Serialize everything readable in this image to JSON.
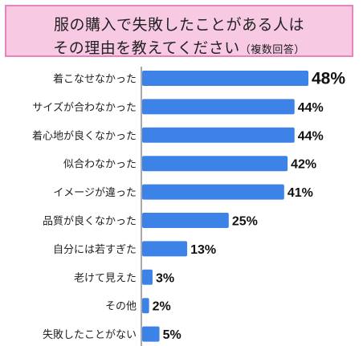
{
  "title": {
    "line1": "服の購入で失敗したことがある人は",
    "line2_main": "その理由を教えてください",
    "line2_suffix": "（複数回答）"
  },
  "colors": {
    "bar": "#3d82e6",
    "title_bg": "#f7c9e3",
    "title_border": "#e784bd",
    "axis": "#555555"
  },
  "chart_data": {
    "type": "bar",
    "orientation": "horizontal",
    "categories": [
      "着こなせなかった",
      "サイズが合わなかった",
      "着心地が良くなかった",
      "似合わなかった",
      "イメージが違った",
      "品質が良くなかった",
      "自分には若すぎた",
      "老けて見えた",
      "その他",
      "失敗したことがない"
    ],
    "values": [
      48,
      44,
      44,
      42,
      41,
      25,
      13,
      3,
      2,
      5
    ],
    "value_labels": [
      "48%",
      "44%",
      "44%",
      "42%",
      "41%",
      "25%",
      "13%",
      "3%",
      "2%",
      "5%"
    ],
    "unit": "%",
    "xlim": [
      0,
      48
    ],
    "grid": false,
    "legend": "none"
  }
}
